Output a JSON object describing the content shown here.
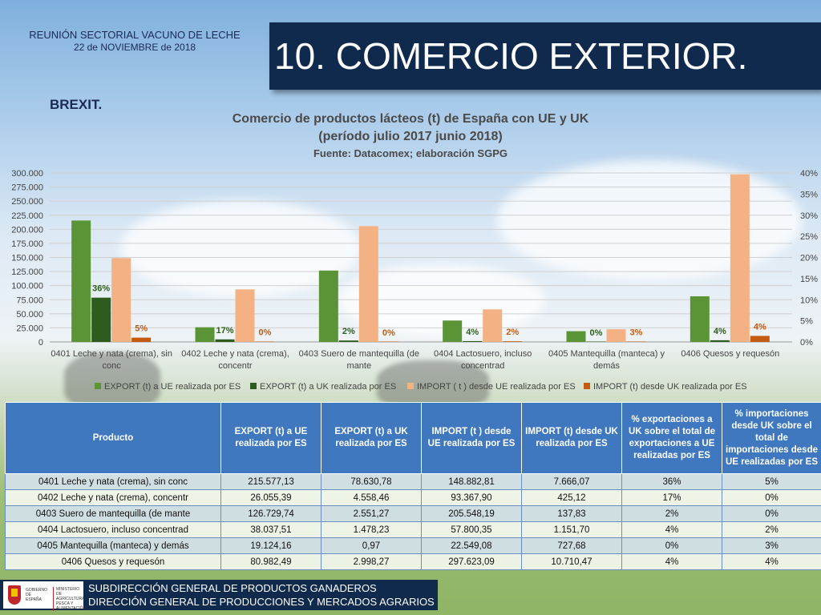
{
  "header": {
    "meeting_line1": "REUNIÓN SECTORIAL VACUNO DE LECHE",
    "meeting_line2": "22 de NOVIEMBRE de 2018",
    "title": "10. COMERCIO EXTERIOR.",
    "section": "BREXIT."
  },
  "chart_data": {
    "type": "bar",
    "title": "Comercio de productos lácteos (t) de España con UE y UK",
    "subtitle": "(período julio 2017 junio 2018)",
    "source": "Fuente: Datacomex; elaboración SGPG",
    "categories": [
      [
        "0401 Leche y nata (crema), sin",
        "conc"
      ],
      [
        "0402 Leche y nata (crema),",
        "concentr"
      ],
      [
        "0403 Suero de mantequilla (de",
        "mante"
      ],
      [
        "0404 Lactosuero, incluso",
        "concentrad"
      ],
      [
        "0405 Mantequilla (manteca) y",
        "demás"
      ],
      [
        "0406 Quesos y requesón",
        ""
      ]
    ],
    "series": [
      {
        "name": "EXPORT (t) a UE realizada por ES",
        "color": "#5b9337",
        "values": [
          215577.13,
          26055.39,
          126729.74,
          38037.51,
          19124.16,
          80982.49
        ]
      },
      {
        "name": "EXPORT (t) a UK realizada por ES",
        "color": "#2e5b1e",
        "values": [
          78630.78,
          4558.46,
          2551.27,
          1478.23,
          0.97,
          2998.27
        ]
      },
      {
        "name": "IMPORT ( t ) desde UE realizada por ES",
        "color": "#f4b183",
        "values": [
          148882.81,
          93367.9,
          205548.19,
          57800.35,
          22549.08,
          297623.09
        ]
      },
      {
        "name": "IMPORT (t) desde UK realizada por ES",
        "color": "#c55a11",
        "values": [
          7666.07,
          425.12,
          137.83,
          1151.7,
          727.68,
          10710.47
        ]
      }
    ],
    "export_pct_labels": [
      "36%",
      "17%",
      "2%",
      "4%",
      "0%",
      "4%"
    ],
    "import_pct_labels": [
      "5%",
      "0%",
      "0%",
      "2%",
      "3%",
      "4%"
    ],
    "ylim": [
      0,
      300000
    ],
    "y_ticks": [
      "0",
      "25.000",
      "50.000",
      "75.000",
      "100.000",
      "125.000",
      "150.000",
      "175.000",
      "200.000",
      "225.000",
      "250.000",
      "275.000",
      "300.000"
    ],
    "y2_ticks": [
      "0%",
      "5%",
      "10%",
      "15%",
      "20%",
      "25%",
      "30%",
      "35%",
      "40%"
    ],
    "legend_position": "bottom",
    "grid": true
  },
  "table": {
    "headers": [
      "Producto",
      "EXPORT (t) a UE realizada por ES",
      "EXPORT (t) a UK realizada por ES",
      "IMPORT (t ) desde UE realizada por ES",
      "IMPORT (t) desde UK realizada por ES",
      "% exportaciones a UK sobre el total de exportaciones a UE realizadas por ES",
      "% importaciones desde UK sobre el total de importaciones desde UE realizadas por ES"
    ],
    "rows": [
      [
        "0401 Leche y nata (crema), sin conc",
        "215.577,13",
        "78.630,78",
        "148.882,81",
        "7.666,07",
        "36%",
        "5%"
      ],
      [
        "0402 Leche y nata (crema), concentr",
        "26.055,39",
        "4.558,46",
        "93.367,90",
        "425,12",
        "17%",
        "0%"
      ],
      [
        "0403 Suero de mantequilla (de mante",
        "126.729,74",
        "2.551,27",
        "205.548,19",
        "137,83",
        "2%",
        "0%"
      ],
      [
        "0404 Lactosuero, incluso concentrad",
        "38.037,51",
        "1.478,23",
        "57.800,35",
        "1.151,70",
        "4%",
        "2%"
      ],
      [
        "0405 Mantequilla (manteca) y demás",
        "19.124,16",
        "0,97",
        "22.549,08",
        "727,68",
        "0%",
        "3%"
      ],
      [
        "0406 Quesos y requesón",
        "80.982,49",
        "2.998,27",
        "297.623,09",
        "10.710,47",
        "4%",
        "4%"
      ]
    ]
  },
  "footer": {
    "logo_gov": "GOBIERNO DE ESPAÑA",
    "logo_ministry": "MINISTERIO DE AGRICULTURA, PESCA Y ALIMENTACIÓN",
    "line1": "SUBDIRECCIÓN GENERAL DE PRODUCTOS GANADEROS",
    "line2": "DIRECCIÓN GENERAL DE PRODUCCIONES Y MERCADOS AGRARIOS"
  }
}
